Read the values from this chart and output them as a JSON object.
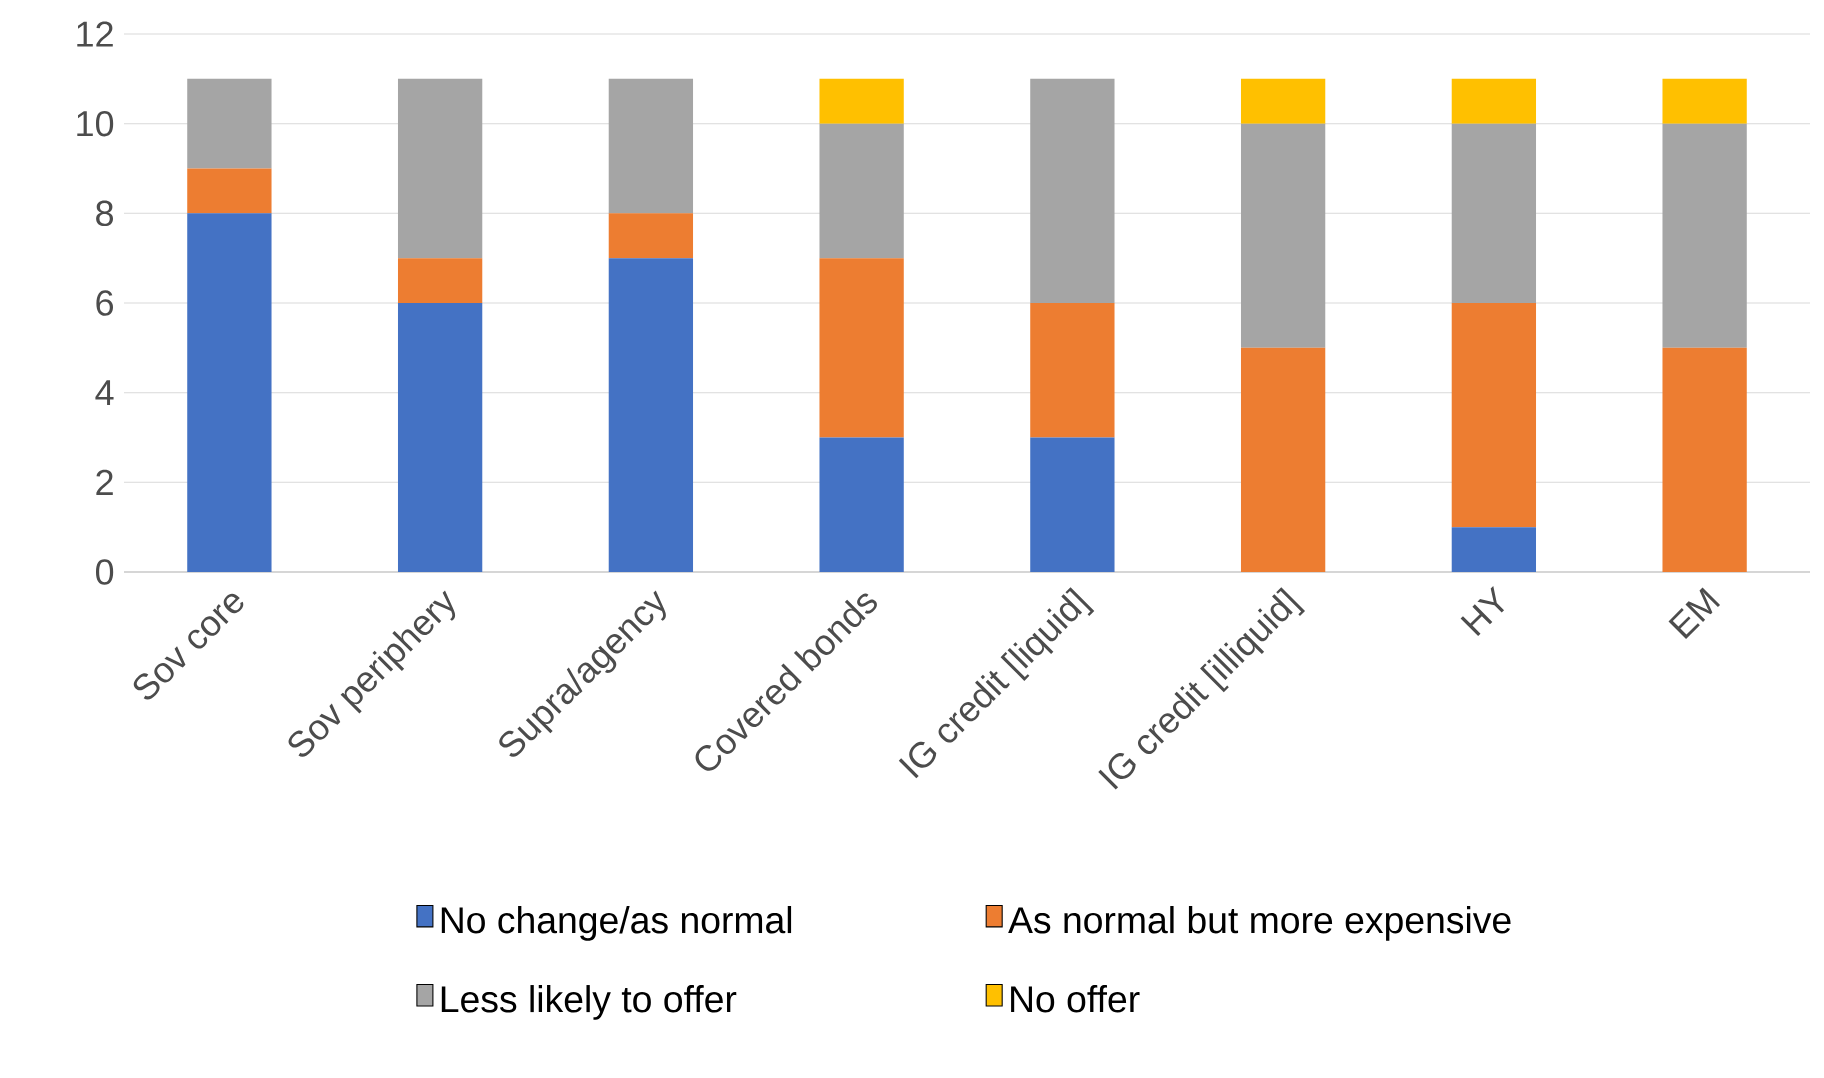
{
  "chart_data": {
    "type": "bar",
    "stacked": true,
    "categories": [
      "Sov core",
      "Sov periphery",
      "Supra/agency",
      "Covered bonds",
      "IG credit [liquid]",
      "IG credit [illiquid]",
      "HY",
      "EM"
    ],
    "series": [
      {
        "name": "No change/as normal",
        "color": "#4472c4",
        "values": [
          8,
          6,
          7,
          3,
          3,
          0,
          1,
          0
        ]
      },
      {
        "name": "As normal but more expensive",
        "color": "#ed7d31",
        "values": [
          1,
          1,
          1,
          4,
          3,
          5,
          5,
          5
        ]
      },
      {
        "name": "Less likely to offer",
        "color": "#a5a5a5",
        "values": [
          2,
          4,
          3,
          3,
          5,
          5,
          4,
          5
        ]
      },
      {
        "name": "No offer",
        "color": "#ffc000",
        "values": [
          0,
          0,
          0,
          1,
          0,
          1,
          1,
          1
        ]
      }
    ],
    "ylim": [
      0,
      12
    ],
    "yticks": [
      0,
      2,
      4,
      6,
      8,
      10,
      12
    ],
    "grid": "y",
    "legend": "bottom"
  }
}
